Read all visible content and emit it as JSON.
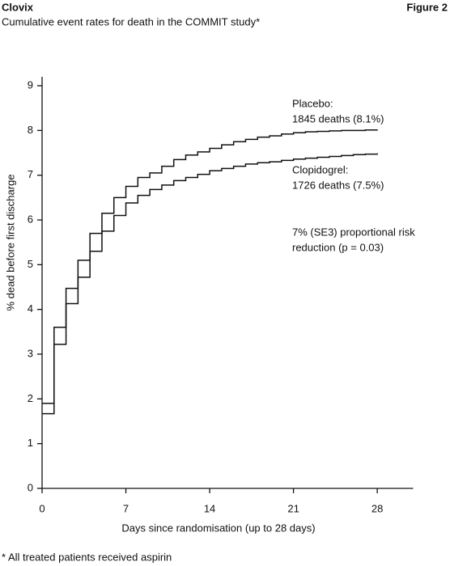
{
  "brand": "Clovix",
  "figure": "Figure 2",
  "chart_data": {
    "type": "step-line",
    "title": "Cumulative event rates for death in the COMMIT study*",
    "xlabel": "Days since randomisation (up to 28 days)",
    "ylabel": "% dead before first discharge",
    "x": [
      0,
      1,
      2,
      3,
      4,
      5,
      6,
      7,
      8,
      9,
      10,
      11,
      12,
      13,
      14,
      15,
      16,
      17,
      18,
      19,
      20,
      21,
      22,
      23,
      24,
      25,
      26,
      27,
      28
    ],
    "series": [
      {
        "name": "Placebo",
        "color": "#111111",
        "values": [
          1.9,
          3.6,
          4.47,
          5.1,
          5.7,
          6.15,
          6.5,
          6.75,
          6.95,
          7.05,
          7.2,
          7.35,
          7.45,
          7.52,
          7.6,
          7.68,
          7.75,
          7.8,
          7.85,
          7.88,
          7.92,
          7.95,
          7.97,
          7.98,
          7.99,
          8.0,
          8.0,
          8.01,
          8.02
        ]
      },
      {
        "name": "Clopidogrel",
        "color": "#111111",
        "values": [
          1.67,
          3.22,
          4.13,
          4.72,
          5.3,
          5.75,
          6.1,
          6.38,
          6.55,
          6.68,
          6.78,
          6.88,
          6.95,
          7.02,
          7.1,
          7.15,
          7.2,
          7.25,
          7.28,
          7.3,
          7.33,
          7.36,
          7.38,
          7.4,
          7.42,
          7.44,
          7.46,
          7.47,
          7.49
        ]
      }
    ],
    "annotations": [
      {
        "lines": [
          "Placebo:",
          "1845 deaths (8.1%)"
        ]
      },
      {
        "lines": [
          "Clopidogrel:",
          "1726 deaths (7.5%)"
        ]
      },
      {
        "lines": [
          "7% (SE3) proportional risk",
          "reduction (p = 0.03)"
        ]
      }
    ],
    "xlim": [
      0,
      31
    ],
    "xticks": [
      0,
      7,
      14,
      21,
      28
    ],
    "ylim": [
      0,
      9.2
    ],
    "yticks": [
      0,
      1,
      2,
      3,
      4,
      5,
      6,
      7,
      8,
      9
    ],
    "footnote": "* All treated patients received aspirin"
  }
}
